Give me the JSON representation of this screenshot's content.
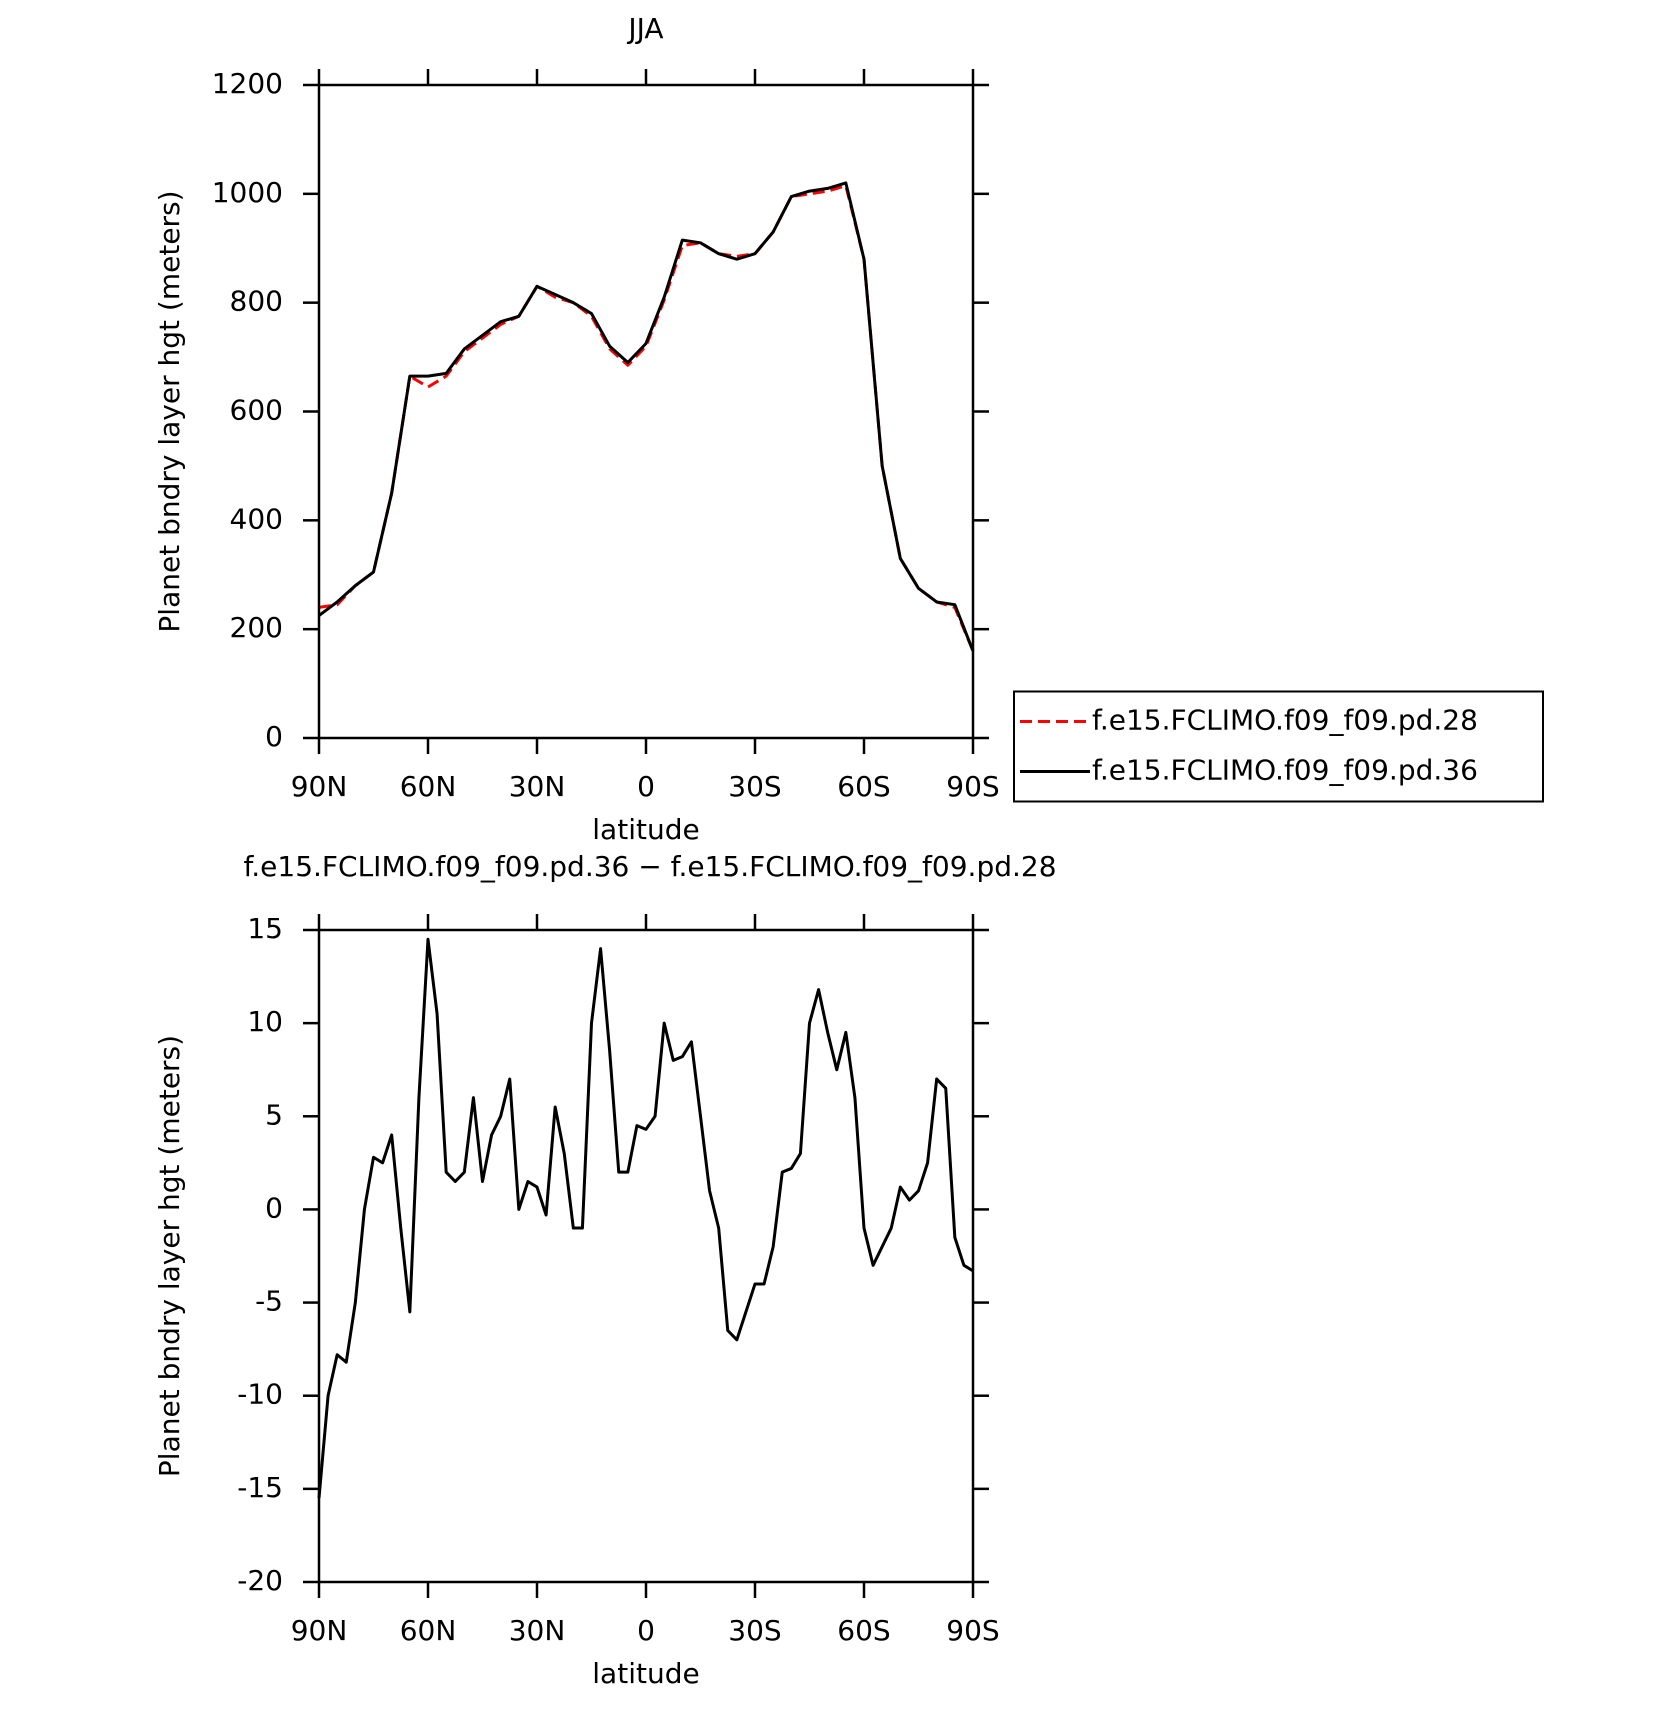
{
  "chart_data": [
    {
      "type": "line",
      "title": "JJA",
      "xlabel": "latitude",
      "ylabel": "Planet bndry layer hgt (meters)",
      "x": [
        90,
        85,
        80,
        75,
        70,
        65,
        60,
        55,
        50,
        45,
        40,
        35,
        30,
        25,
        20,
        15,
        10,
        5,
        0,
        -5,
        -10,
        -15,
        -20,
        -25,
        -30,
        -35,
        -40,
        -45,
        -50,
        -55,
        -60,
        -65,
        -70,
        -75,
        -80,
        -85,
        -90
      ],
      "series": [
        {
          "name": "f.e15.FCLIMO.f09_f09.pd.28",
          "color": "#ff0000",
          "dashed": true,
          "values": [
            240,
            245,
            280,
            305,
            450,
            665,
            645,
            665,
            710,
            735,
            760,
            775,
            830,
            810,
            800,
            775,
            715,
            685,
            720,
            805,
            905,
            910,
            890,
            885,
            890,
            930,
            995,
            1000,
            1005,
            1015,
            880,
            500,
            330,
            275,
            250,
            240,
            160
          ]
        },
        {
          "name": "f.e15.FCLIMO.f09_f09.pd.36",
          "color": "#000000",
          "dashed": false,
          "values": [
            225,
            250,
            280,
            305,
            450,
            665,
            665,
            670,
            715,
            740,
            765,
            775,
            830,
            815,
            800,
            780,
            720,
            690,
            725,
            810,
            915,
            910,
            890,
            880,
            890,
            930,
            995,
            1005,
            1010,
            1020,
            880,
            500,
            330,
            275,
            250,
            245,
            160
          ]
        }
      ],
      "xlim": [
        90,
        -90
      ],
      "xticks": [
        {
          "value": 90,
          "label": "90N"
        },
        {
          "value": 60,
          "label": "60N"
        },
        {
          "value": 30,
          "label": "30N"
        },
        0,
        {
          "value": -30,
          "label": "30S"
        },
        {
          "value": -60,
          "label": "60S"
        },
        {
          "value": -90,
          "label": "90S"
        }
      ],
      "ylim": [
        0,
        1200
      ],
      "yticks": [
        0,
        200,
        400,
        600,
        800,
        1000,
        1200
      ],
      "legend": "right"
    },
    {
      "type": "line",
      "title": "f.e15.FCLIMO.f09_f09.pd.36 − f.e15.FCLIMO.f09_f09.pd.28",
      "xlabel": "latitude",
      "ylabel": "Planet bndry layer hgt (meters)",
      "x": [
        90,
        87.5,
        85,
        82.5,
        80,
        77.5,
        75,
        72.5,
        70,
        67.5,
        65,
        62.5,
        60,
        57.5,
        55,
        52.5,
        50,
        47.5,
        45,
        42.5,
        40,
        37.5,
        35,
        32.5,
        30,
        27.5,
        25,
        22.5,
        20,
        17.5,
        15,
        12.5,
        10,
        7.5,
        5,
        2.5,
        0,
        -2.5,
        -5,
        -7.5,
        -10,
        -12.5,
        -15,
        -17.5,
        -20,
        -22.5,
        -25,
        -27.5,
        -30,
        -32.5,
        -35,
        -37.5,
        -40,
        -42.5,
        -45,
        -47.5,
        -50,
        -52.5,
        -55,
        -57.5,
        -60,
        -62.5,
        -65,
        -67.5,
        -70,
        -72.5,
        -75,
        -77.5,
        -80,
        -82.5,
        -85,
        -87.5,
        -90
      ],
      "series": [
        {
          "name": "f.e15.FCLIMO.f09_f09.pd.36 − f.e15.FCLIMO.f09_f09.pd.28",
          "color": "#000000",
          "dashed": false,
          "values": [
            -15.5,
            -10,
            -7.8,
            -8.2,
            -5,
            0,
            2.8,
            2.5,
            4,
            -1,
            -5.5,
            6,
            14.5,
            10.5,
            2,
            1.5,
            2,
            6,
            1.5,
            4,
            5,
            7,
            0,
            1.5,
            1.2,
            -0.3,
            5.5,
            3,
            -1,
            -1,
            10,
            14,
            8.5,
            2,
            2,
            4.5,
            4.3,
            5,
            10,
            8,
            8.2,
            9,
            5,
            1,
            -1,
            -6.5,
            -7,
            -5.5,
            -4,
            -4,
            -2,
            2,
            2.2,
            3,
            10,
            11.8,
            9.5,
            7.5,
            9.5,
            6,
            -1,
            -3,
            -2,
            -1,
            1.2,
            0.5,
            1,
            2.5,
            7,
            6.5,
            -1.5,
            -3,
            -3.3
          ]
        }
      ],
      "xlim": [
        90,
        -90
      ],
      "xticks": [
        {
          "value": 90,
          "label": "90N"
        },
        {
          "value": 60,
          "label": "60N"
        },
        {
          "value": 30,
          "label": "30N"
        },
        0,
        {
          "value": -30,
          "label": "30S"
        },
        {
          "value": -60,
          "label": "60S"
        },
        {
          "value": -90,
          "label": "90S"
        }
      ],
      "ylim": [
        -20,
        15
      ],
      "yticks": [
        -20,
        -15,
        -10,
        -5,
        0,
        5,
        10,
        15
      ]
    }
  ]
}
